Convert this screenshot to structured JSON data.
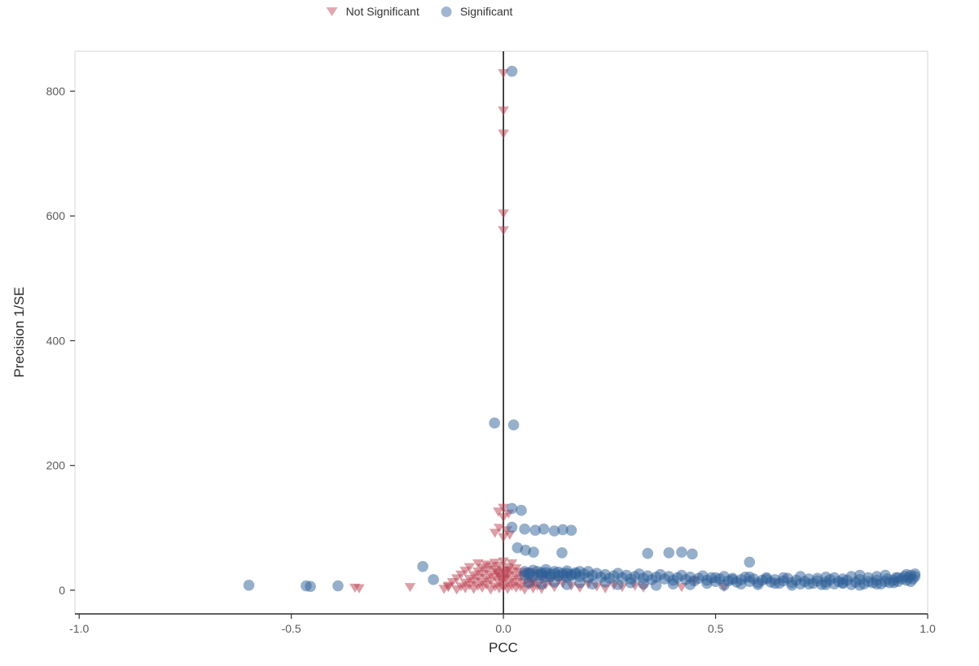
{
  "legend": {
    "not_significant_label": "Not Significant",
    "significant_label": "Significant"
  },
  "chart_data": {
    "type": "scatter",
    "title": "",
    "xlabel": "PCC",
    "ylabel": "Precision 1/SE",
    "x_range": [
      -1.01,
      1.0
    ],
    "y_range": [
      -38,
      864
    ],
    "x_ticks": [
      -1.0,
      -0.5,
      0.0,
      0.5,
      1.0
    ],
    "x_tick_labels": [
      "-1.0",
      "-0.5",
      "0.0",
      "0.5",
      "1.0"
    ],
    "y_ticks": [
      0,
      200,
      400,
      600,
      800
    ],
    "y_tick_labels": [
      "0",
      "200",
      "400",
      "600",
      "800"
    ],
    "grid": false,
    "legend_position": "top",
    "reference_line_x": 0,
    "panel_border_color": "#d4d4d4",
    "axis_line_color": "#2b2b2b",
    "series": [
      {
        "name": "Not Significant",
        "marker": "triangle-down",
        "color": "#bc3f50",
        "opacity": 0.5,
        "points": [
          [
            0,
            830
          ],
          [
            0,
            770
          ],
          [
            0,
            733
          ],
          [
            0,
            605
          ],
          [
            0,
            578
          ],
          [
            0,
            133
          ],
          [
            -0.012,
            127
          ],
          [
            0.012,
            124
          ],
          [
            0,
            118
          ],
          [
            -0.01,
            101
          ],
          [
            0.008,
            97
          ],
          [
            -0.02,
            93
          ],
          [
            0.015,
            90
          ],
          [
            0,
            86
          ],
          [
            -0.06,
            44
          ],
          [
            -0.04,
            42
          ],
          [
            -0.02,
            45
          ],
          [
            0,
            47
          ],
          [
            0.02,
            44
          ],
          [
            -0.08,
            38
          ],
          [
            -0.05,
            37
          ],
          [
            -0.03,
            39
          ],
          [
            -0.01,
            40
          ],
          [
            0.01,
            38
          ],
          [
            0.03,
            36
          ],
          [
            -0.09,
            32
          ],
          [
            -0.06,
            31
          ],
          [
            -0.04,
            33
          ],
          [
            -0.02,
            34
          ],
          [
            0,
            32
          ],
          [
            0.02,
            31
          ],
          [
            0.04,
            30
          ],
          [
            -0.1,
            26
          ],
          [
            -0.07,
            25
          ],
          [
            -0.05,
            27
          ],
          [
            -0.03,
            26
          ],
          [
            -0.01,
            28
          ],
          [
            0.01,
            25
          ],
          [
            0.03,
            24
          ],
          [
            0.05,
            26
          ],
          [
            -0.11,
            20
          ],
          [
            -0.08,
            19
          ],
          [
            -0.06,
            21
          ],
          [
            -0.04,
            20
          ],
          [
            -0.02,
            22
          ],
          [
            0,
            19
          ],
          [
            0.02,
            18
          ],
          [
            0.04,
            20
          ],
          [
            0.06,
            19
          ],
          [
            -0.12,
            14
          ],
          [
            -0.09,
            13
          ],
          [
            -0.07,
            15
          ],
          [
            -0.05,
            14
          ],
          [
            -0.03,
            16
          ],
          [
            -0.01,
            13
          ],
          [
            0.01,
            12
          ],
          [
            0.03,
            14
          ],
          [
            0.05,
            13
          ],
          [
            0.07,
            12
          ],
          [
            -0.13,
            8
          ],
          [
            -0.1,
            7
          ],
          [
            -0.08,
            9
          ],
          [
            -0.06,
            8
          ],
          [
            -0.04,
            10
          ],
          [
            -0.02,
            7
          ],
          [
            0,
            6
          ],
          [
            0.02,
            8
          ],
          [
            0.04,
            7
          ],
          [
            0.06,
            9
          ],
          [
            0.08,
            8
          ],
          [
            -0.14,
            3
          ],
          [
            -0.11,
            2
          ],
          [
            -0.09,
            4
          ],
          [
            -0.07,
            3
          ],
          [
            -0.05,
            5
          ],
          [
            -0.03,
            2
          ],
          [
            -0.01,
            4
          ],
          [
            0.01,
            3
          ],
          [
            0.03,
            5
          ],
          [
            0.05,
            2
          ],
          [
            0.07,
            4
          ],
          [
            0.09,
            3
          ],
          [
            -0.01,
            24
          ],
          [
            0.005,
            28
          ],
          [
            -0.015,
            30
          ],
          [
            0.01,
            33
          ],
          [
            -0.005,
            17
          ],
          [
            0.005,
            21
          ],
          [
            -0.35,
            5
          ],
          [
            -0.34,
            4
          ],
          [
            -0.22,
            6
          ],
          [
            -0.13,
            6
          ],
          [
            0.1,
            10
          ],
          [
            0.12,
            6
          ],
          [
            0.14,
            12
          ],
          [
            0.16,
            8
          ],
          [
            0.18,
            5
          ],
          [
            0.2,
            11
          ],
          [
            0.22,
            7
          ],
          [
            0.24,
            4
          ],
          [
            0.26,
            9
          ],
          [
            0.28,
            6
          ],
          [
            0.31,
            8
          ],
          [
            0.33,
            5
          ],
          [
            0.42,
            6
          ],
          [
            0.45,
            16
          ],
          [
            0.52,
            6
          ],
          [
            0.07,
            16
          ],
          [
            0.09,
            18
          ],
          [
            0.11,
            15
          ],
          [
            0.13,
            17
          ],
          [
            0.06,
            30
          ],
          [
            0.08,
            28
          ],
          [
            0.1,
            25
          ]
        ]
      },
      {
        "name": "Significant",
        "marker": "circle",
        "color": "#2e5f98",
        "opacity": 0.5,
        "points": [
          [
            0.02,
            832
          ],
          [
            -0.021,
            268
          ],
          [
            0.024,
            265
          ],
          [
            0.02,
            131
          ],
          [
            0.042,
            128
          ],
          [
            0.02,
            101
          ],
          [
            0.05,
            98
          ],
          [
            0.075,
            96
          ],
          [
            0.095,
            98
          ],
          [
            0.12,
            95
          ],
          [
            0.14,
            97
          ],
          [
            0.16,
            96
          ],
          [
            0.033,
            68
          ],
          [
            0.052,
            64
          ],
          [
            0.071,
            61
          ],
          [
            0.138,
            60
          ],
          [
            0.34,
            59
          ],
          [
            0.39,
            60
          ],
          [
            0.42,
            61
          ],
          [
            0.445,
            58
          ],
          [
            0.58,
            45
          ],
          [
            -0.19,
            38
          ],
          [
            -0.165,
            17
          ],
          [
            -0.6,
            8
          ],
          [
            -0.465,
            7
          ],
          [
            -0.455,
            6
          ],
          [
            -0.39,
            7
          ],
          [
            0.05,
            24
          ],
          [
            0.06,
            28
          ],
          [
            0.07,
            22
          ],
          [
            0.08,
            30
          ],
          [
            0.09,
            25
          ],
          [
            0.1,
            28
          ],
          [
            0.11,
            22
          ],
          [
            0.12,
            26
          ],
          [
            0.13,
            29
          ],
          [
            0.14,
            24
          ],
          [
            0.15,
            27
          ],
          [
            0.16,
            23
          ],
          [
            0.17,
            26
          ],
          [
            0.18,
            30
          ],
          [
            0.05,
            30
          ],
          [
            0.06,
            26
          ],
          [
            0.07,
            32
          ],
          [
            0.08,
            24
          ],
          [
            0.09,
            28
          ],
          [
            0.1,
            22
          ],
          [
            0.1,
            33
          ],
          [
            0.11,
            26
          ],
          [
            0.12,
            30
          ],
          [
            0.13,
            23
          ],
          [
            0.14,
            27
          ],
          [
            0.15,
            21
          ],
          [
            0.15,
            31
          ],
          [
            0.16,
            25
          ],
          [
            0.17,
            28
          ],
          [
            0.18,
            22
          ],
          [
            0.19,
            26
          ],
          [
            0.2,
            20
          ],
          [
            0.2,
            30
          ],
          [
            0.21,
            24
          ],
          [
            0.22,
            27
          ],
          [
            0.23,
            21
          ],
          [
            0.24,
            25
          ],
          [
            0.25,
            19
          ],
          [
            0.26,
            23
          ],
          [
            0.27,
            27
          ],
          [
            0.28,
            20
          ],
          [
            0.29,
            24
          ],
          [
            0.3,
            18
          ],
          [
            0.31,
            22
          ],
          [
            0.32,
            26
          ],
          [
            0.33,
            19
          ],
          [
            0.34,
            23
          ],
          [
            0.35,
            17
          ],
          [
            0.36,
            21
          ],
          [
            0.37,
            25
          ],
          [
            0.38,
            18
          ],
          [
            0.39,
            22
          ],
          [
            0.4,
            16
          ],
          [
            0.41,
            20
          ],
          [
            0.42,
            24
          ],
          [
            0.43,
            17
          ],
          [
            0.44,
            21
          ],
          [
            0.45,
            15
          ],
          [
            0.46,
            19
          ],
          [
            0.47,
            23
          ],
          [
            0.48,
            16
          ],
          [
            0.49,
            20
          ],
          [
            0.5,
            14
          ],
          [
            0.51,
            18
          ],
          [
            0.52,
            22
          ],
          [
            0.53,
            15
          ],
          [
            0.54,
            19
          ],
          [
            0.55,
            13
          ],
          [
            0.56,
            17
          ],
          [
            0.57,
            21
          ],
          [
            0.58,
            14
          ],
          [
            0.59,
            18
          ],
          [
            0.6,
            12
          ],
          [
            0.61,
            16
          ],
          [
            0.62,
            20
          ],
          [
            0.63,
            13
          ],
          [
            0.64,
            17
          ],
          [
            0.65,
            11
          ],
          [
            0.66,
            15
          ],
          [
            0.67,
            19
          ],
          [
            0.68,
            12
          ],
          [
            0.69,
            16
          ],
          [
            0.7,
            10
          ],
          [
            0.71,
            14
          ],
          [
            0.72,
            18
          ],
          [
            0.73,
            11
          ],
          [
            0.74,
            15
          ],
          [
            0.75,
            9
          ],
          [
            0.76,
            13
          ],
          [
            0.77,
            17
          ],
          [
            0.78,
            10
          ],
          [
            0.79,
            14
          ],
          [
            0.8,
            12
          ],
          [
            0.81,
            16
          ],
          [
            0.82,
            9
          ],
          [
            0.83,
            13
          ],
          [
            0.84,
            17
          ],
          [
            0.85,
            10
          ],
          [
            0.86,
            14
          ],
          [
            0.87,
            12
          ],
          [
            0.88,
            16
          ],
          [
            0.89,
            10
          ],
          [
            0.9,
            14
          ],
          [
            0.905,
            18
          ],
          [
            0.91,
            12
          ],
          [
            0.92,
            16
          ],
          [
            0.925,
            20
          ],
          [
            0.93,
            14
          ],
          [
            0.94,
            18
          ],
          [
            0.945,
            22
          ],
          [
            0.95,
            16
          ],
          [
            0.955,
            20
          ],
          [
            0.96,
            24
          ],
          [
            0.965,
            18
          ],
          [
            0.97,
            22
          ],
          [
            0.97,
            26
          ],
          [
            0.06,
            12
          ],
          [
            0.09,
            10
          ],
          [
            0.12,
            13
          ],
          [
            0.15,
            9
          ],
          [
            0.18,
            12
          ],
          [
            0.21,
            10
          ],
          [
            0.24,
            13
          ],
          [
            0.27,
            9
          ],
          [
            0.3,
            12
          ],
          [
            0.33,
            10
          ],
          [
            0.36,
            8
          ],
          [
            0.4,
            10
          ],
          [
            0.44,
            9
          ],
          [
            0.48,
            11
          ],
          [
            0.52,
            8
          ],
          [
            0.56,
            10
          ],
          [
            0.6,
            9
          ],
          [
            0.64,
            11
          ],
          [
            0.68,
            8
          ],
          [
            0.72,
            10
          ],
          [
            0.76,
            9
          ],
          [
            0.8,
            11
          ],
          [
            0.84,
            8
          ],
          [
            0.88,
            10
          ],
          [
            0.92,
            12
          ],
          [
            0.96,
            14
          ],
          [
            0.5,
            20
          ],
          [
            0.54,
            17
          ],
          [
            0.58,
            21
          ],
          [
            0.62,
            18
          ],
          [
            0.66,
            20
          ],
          [
            0.7,
            22
          ],
          [
            0.74,
            19
          ],
          [
            0.76,
            21
          ],
          [
            0.78,
            20
          ],
          [
            0.8,
            18
          ],
          [
            0.82,
            22
          ],
          [
            0.84,
            24
          ],
          [
            0.86,
            20
          ],
          [
            0.88,
            22
          ],
          [
            0.9,
            24
          ],
          [
            0.93,
            20
          ],
          [
            0.95,
            25
          ]
        ]
      }
    ]
  }
}
